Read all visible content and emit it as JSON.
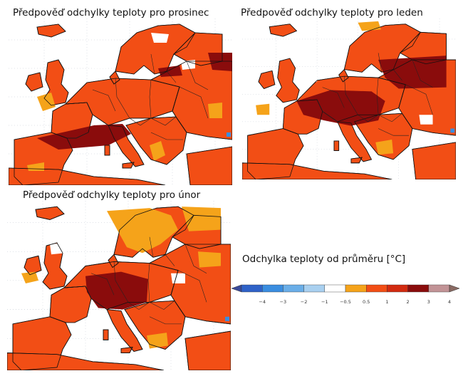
{
  "maps": [
    {
      "id": "prosinec",
      "title": "Předpověď odchylky teploty pro prosinec",
      "icon": "anomaly-map-europe-icon"
    },
    {
      "id": "leden",
      "title": "Předpověď odchylky teploty pro leden",
      "icon": "anomaly-map-europe-icon"
    },
    {
      "id": "unor",
      "title": "Předpověď odchylky teploty pro únor",
      "icon": "anomaly-map-europe-icon"
    }
  ],
  "legend": {
    "title": "Odchylka teploty od průměru [°C]",
    "ticks": [
      "−4",
      "−3",
      "−2",
      "−1",
      "−0.5",
      "0.5",
      "1",
      "2",
      "3",
      "4"
    ],
    "colors": [
      "#3a4a9a",
      "#2f62c8",
      "#3a8de0",
      "#6aaee8",
      "#a9d0f0",
      "#ffffff",
      "#f5a31a",
      "#f24e15",
      "#d22b10",
      "#8a0c0c",
      "#c29396",
      "#8a6a63"
    ]
  },
  "palette": {
    "land": "#f24e15",
    "warm_light": "#f5a31a",
    "warm_dark": "#8a0c0c",
    "sea": "#ffffff",
    "border": "#222222",
    "coast": "#111111",
    "cold_blue": "#3a8de0"
  }
}
